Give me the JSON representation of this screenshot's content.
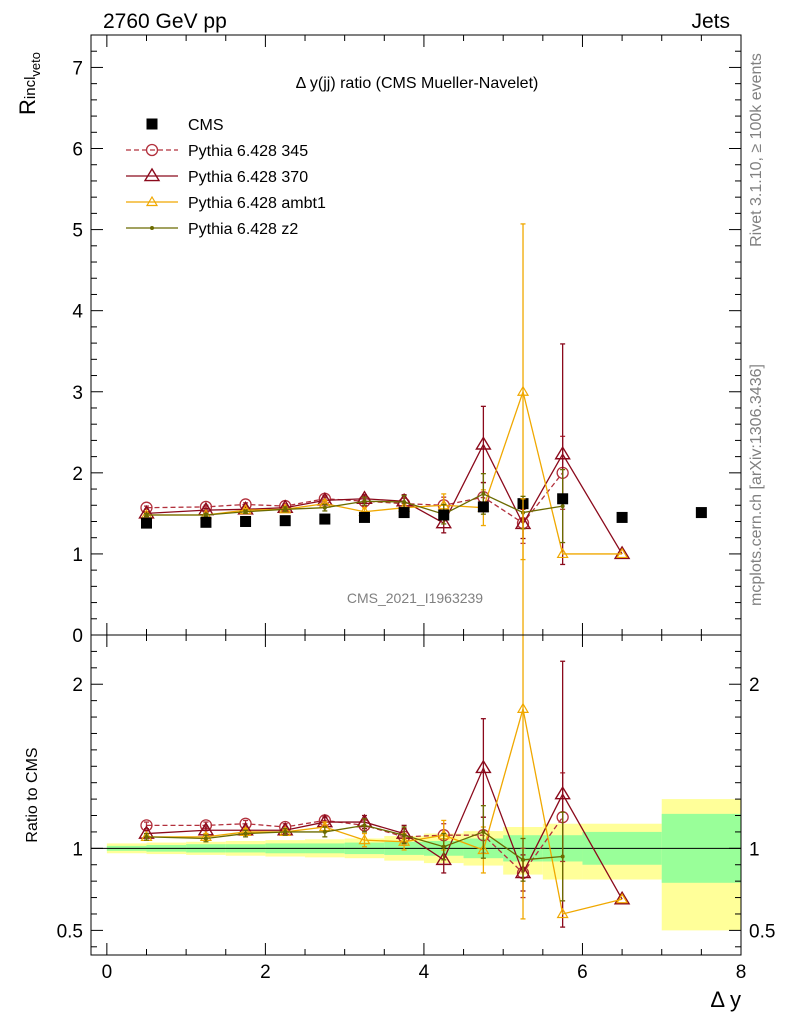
{
  "header": {
    "left": "2760 GeV pp",
    "right": "Jets"
  },
  "side_labels": {
    "rivet": "Rivet 3.1.10, ≥ 100k events",
    "mcplots": "mcplots.cern.ch [arXiv:1306.3436]"
  },
  "watermark": "CMS_2021_I1963239",
  "colors": {
    "cms": "#000000",
    "p345": "#b2303c",
    "p370": "#8b0a1c",
    "ambt1": "#f0a800",
    "z2": "#6b6b00",
    "band_inner": "#99ff99",
    "band_outer": "#ffff99"
  },
  "chart_data": {
    "type": "scatter",
    "title": "Δ y(jj) ratio (CMS Mueller-Navelet)",
    "ylabel_main": "R",
    "ylabel_main_sup": "incl",
    "ylabel_main_sub": "veto",
    "ylabel_ratio": "Ratio to CMS",
    "xlabel": "Δ y",
    "xlim": [
      -0.2,
      8.0
    ],
    "ylim_main": [
      0,
      7.4
    ],
    "ylim_ratio": [
      0.35,
      2.3
    ],
    "xticks": [
      0,
      2,
      4,
      6,
      8
    ],
    "yticks_main": [
      0,
      1,
      2,
      3,
      4,
      5,
      6,
      7
    ],
    "yticks_ratio": [
      0.5,
      1,
      2
    ],
    "legend_position": "top-left",
    "data": {
      "name": "CMS",
      "x": [
        0.5,
        1.25,
        1.75,
        2.25,
        2.75,
        3.25,
        3.75,
        4.25,
        4.75,
        5.25,
        5.75,
        6.5,
        7.5
      ],
      "y": [
        1.38,
        1.39,
        1.4,
        1.41,
        1.43,
        1.45,
        1.51,
        1.48,
        1.58,
        1.62,
        1.68,
        1.45,
        1.51
      ],
      "band_inner": [
        {
          "x0": 0.0,
          "x1": 0.5,
          "lo": 0.985,
          "hi": 1.015
        },
        {
          "x0": 0.5,
          "x1": 1.0,
          "lo": 0.98,
          "hi": 1.02
        },
        {
          "x0": 1.0,
          "x1": 1.5,
          "lo": 0.975,
          "hi": 1.025
        },
        {
          "x0": 1.5,
          "x1": 2.0,
          "lo": 0.975,
          "hi": 1.025
        },
        {
          "x0": 2.0,
          "x1": 2.5,
          "lo": 0.97,
          "hi": 1.03
        },
        {
          "x0": 2.5,
          "x1": 3.0,
          "lo": 0.97,
          "hi": 1.03
        },
        {
          "x0": 3.0,
          "x1": 3.5,
          "lo": 0.965,
          "hi": 1.035
        },
        {
          "x0": 3.5,
          "x1": 4.0,
          "lo": 0.96,
          "hi": 1.04
        },
        {
          "x0": 4.0,
          "x1": 4.5,
          "lo": 0.955,
          "hi": 1.045
        },
        {
          "x0": 4.5,
          "x1": 5.0,
          "lo": 0.94,
          "hi": 1.06
        },
        {
          "x0": 5.0,
          "x1": 5.5,
          "lo": 0.92,
          "hi": 1.08
        },
        {
          "x0": 5.5,
          "x1": 6.0,
          "lo": 0.92,
          "hi": 1.08
        },
        {
          "x0": 6.0,
          "x1": 7.0,
          "lo": 0.9,
          "hi": 1.1
        },
        {
          "x0": 7.0,
          "x1": 8.0,
          "lo": 0.79,
          "hi": 1.21
        }
      ],
      "band_outer": [
        {
          "x0": 0.0,
          "x1": 0.5,
          "lo": 0.97,
          "hi": 1.03
        },
        {
          "x0": 0.5,
          "x1": 1.0,
          "lo": 0.965,
          "hi": 1.035
        },
        {
          "x0": 1.0,
          "x1": 1.5,
          "lo": 0.96,
          "hi": 1.04
        },
        {
          "x0": 1.5,
          "x1": 2.0,
          "lo": 0.955,
          "hi": 1.045
        },
        {
          "x0": 2.0,
          "x1": 2.5,
          "lo": 0.95,
          "hi": 1.05
        },
        {
          "x0": 2.5,
          "x1": 3.0,
          "lo": 0.945,
          "hi": 1.055
        },
        {
          "x0": 3.0,
          "x1": 3.5,
          "lo": 0.94,
          "hi": 1.06
        },
        {
          "x0": 3.5,
          "x1": 4.0,
          "lo": 0.925,
          "hi": 1.075
        },
        {
          "x0": 4.0,
          "x1": 4.5,
          "lo": 0.91,
          "hi": 1.09
        },
        {
          "x0": 4.5,
          "x1": 5.0,
          "lo": 0.895,
          "hi": 1.105
        },
        {
          "x0": 5.0,
          "x1": 5.5,
          "lo": 0.84,
          "hi": 1.13
        },
        {
          "x0": 5.5,
          "x1": 6.0,
          "lo": 0.81,
          "hi": 1.15
        },
        {
          "x0": 6.0,
          "x1": 7.0,
          "lo": 0.81,
          "hi": 1.15
        },
        {
          "x0": 7.0,
          "x1": 8.0,
          "lo": 0.5,
          "hi": 1.3
        }
      ]
    },
    "series": [
      {
        "name": "Pythia 6.428 345",
        "color_key": "p345",
        "marker": "circle",
        "dashed": true,
        "x": [
          0.5,
          1.25,
          1.75,
          2.25,
          2.75,
          3.25,
          3.75,
          4.25,
          4.75,
          5.25,
          5.75
        ],
        "y": [
          1.57,
          1.58,
          1.61,
          1.59,
          1.68,
          1.65,
          1.62,
          1.6,
          1.7,
          1.38,
          2.0
        ],
        "err": [
          0.02,
          0.02,
          0.02,
          0.03,
          0.04,
          0.05,
          0.07,
          0.1,
          0.18,
          0.25,
          0.45
        ],
        "ratio": [
          1.14,
          1.14,
          1.15,
          1.13,
          1.17,
          1.14,
          1.07,
          1.08,
          1.08,
          0.85,
          1.19
        ],
        "ratio_err": [
          0.02,
          0.02,
          0.02,
          0.02,
          0.03,
          0.04,
          0.05,
          0.07,
          0.11,
          0.15,
          0.27
        ]
      },
      {
        "name": "Pythia 6.428 370",
        "color_key": "p370",
        "marker": "triangle",
        "dashed": false,
        "x": [
          0.5,
          1.25,
          1.75,
          2.25,
          2.75,
          3.25,
          3.75,
          4.25,
          4.75,
          5.25,
          5.75,
          6.5
        ],
        "y": [
          1.5,
          1.54,
          1.55,
          1.57,
          1.66,
          1.68,
          1.65,
          1.38,
          2.35,
          1.37,
          2.23,
          1.0
        ],
        "err": [
          0.02,
          0.02,
          0.03,
          0.03,
          0.04,
          0.05,
          0.08,
          0.12,
          0.47,
          0.18,
          1.36,
          0.0
        ],
        "ratio": [
          1.09,
          1.11,
          1.11,
          1.11,
          1.16,
          1.16,
          1.09,
          0.93,
          1.49,
          0.85,
          1.33,
          0.69
        ],
        "ratio_err": [
          0.02,
          0.02,
          0.02,
          0.02,
          0.03,
          0.04,
          0.05,
          0.08,
          0.3,
          0.11,
          0.81,
          0.0
        ]
      },
      {
        "name": "Pythia 6.428 ambt1",
        "color_key": "ambt1",
        "marker": "triangle-small",
        "dashed": false,
        "x": [
          0.5,
          1.25,
          1.75,
          2.25,
          2.75,
          3.25,
          3.75,
          4.25,
          4.75,
          5.25,
          5.75,
          6.5
        ],
        "y": [
          1.48,
          1.48,
          1.54,
          1.55,
          1.62,
          1.52,
          1.57,
          1.6,
          1.57,
          3.0,
          1.0,
          1.0
        ],
        "err": [
          0.02,
          0.02,
          0.02,
          0.03,
          0.04,
          0.05,
          0.07,
          0.14,
          0.22,
          2.07,
          0.0,
          0.0
        ],
        "ratio": [
          1.07,
          1.07,
          1.1,
          1.1,
          1.13,
          1.05,
          1.04,
          1.08,
          0.99,
          1.85,
          0.6,
          0.69
        ],
        "ratio_err": [
          0.02,
          0.02,
          0.02,
          0.02,
          0.03,
          0.04,
          0.05,
          0.09,
          0.14,
          1.28,
          0.0,
          0.0
        ]
      },
      {
        "name": "Pythia 6.428 z2",
        "color_key": "z2",
        "marker": "dot",
        "dashed": false,
        "x": [
          0.5,
          1.25,
          1.75,
          2.25,
          2.75,
          3.25,
          3.75,
          4.25,
          4.75,
          5.25,
          5.75
        ],
        "y": [
          1.48,
          1.48,
          1.52,
          1.55,
          1.57,
          1.65,
          1.64,
          1.49,
          1.74,
          1.51,
          1.59
        ],
        "err": [
          0.02,
          0.02,
          0.02,
          0.03,
          0.04,
          0.05,
          0.08,
          0.12,
          0.25,
          0.2,
          0.45
        ],
        "ratio": [
          1.07,
          1.06,
          1.09,
          1.1,
          1.1,
          1.14,
          1.08,
          1.01,
          1.1,
          0.93,
          0.95
        ],
        "ratio_err": [
          0.02,
          0.02,
          0.02,
          0.02,
          0.03,
          0.04,
          0.05,
          0.08,
          0.16,
          0.13,
          0.27
        ]
      }
    ]
  }
}
